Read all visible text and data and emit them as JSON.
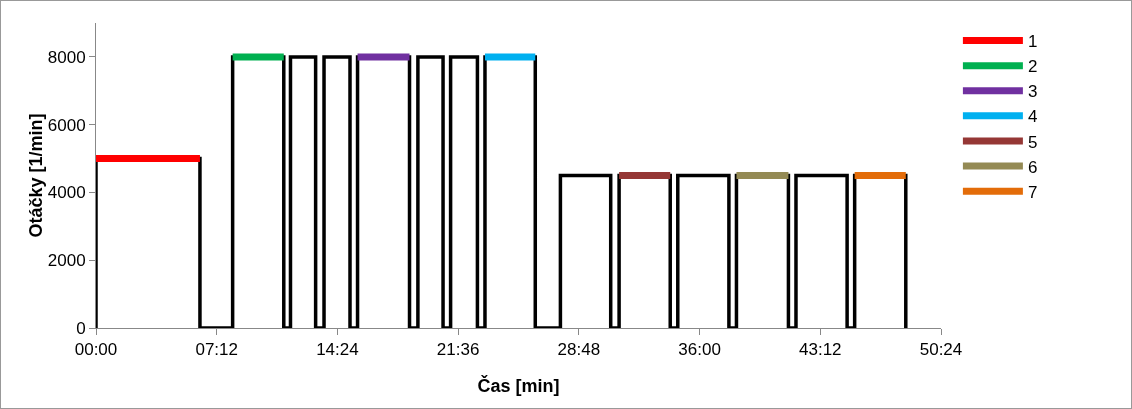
{
  "chart_data": {
    "type": "line",
    "xlabel": "Čas [min]",
    "ylabel": "Otáčky [1/min]",
    "xlim": [
      0,
      50.4
    ],
    "xticks": [
      {
        "value": 0,
        "label": "00:00"
      },
      {
        "value": 7.2,
        "label": "07:12"
      },
      {
        "value": 14.4,
        "label": "14:24"
      },
      {
        "value": 21.6,
        "label": "21:36"
      },
      {
        "value": 28.8,
        "label": "28:48"
      },
      {
        "value": 36,
        "label": "36:00"
      },
      {
        "value": 43.2,
        "label": "43:12"
      },
      {
        "value": 50.4,
        "label": "50:24"
      }
    ],
    "ylim": [
      0,
      9000
    ],
    "yticks": [
      0,
      2000,
      4000,
      6000,
      8000
    ],
    "grid": false,
    "legend": "right",
    "marker": "none",
    "series": [
      {
        "type": "step",
        "color": "#000000",
        "x": [
          0,
          0,
          6.2,
          8.15,
          11.2,
          11.6,
          13.1,
          13.6,
          15.15,
          15.6,
          18.7,
          19.2,
          20.7,
          21.15,
          22.75,
          23.2,
          26.2,
          27.7,
          30.7,
          31.2,
          34.25,
          34.7,
          37.75,
          38.2,
          41.3,
          41.75,
          44.8,
          45.25,
          48.3
        ],
        "values": [
          0,
          5000,
          0,
          8000,
          0,
          8000,
          0,
          8000,
          0,
          8000,
          0,
          8000,
          0,
          8000,
          0,
          8000,
          0,
          4500,
          0,
          4500,
          0,
          4500,
          0,
          4500,
          0,
          4500,
          0,
          4500,
          0
        ]
      },
      {
        "name": "1",
        "color": "#ff0000",
        "x": [
          0,
          6.2
        ],
        "values": [
          5000,
          5000
        ]
      },
      {
        "name": "2",
        "color": "#00b050",
        "x": [
          8.15,
          11.2
        ],
        "values": [
          8000,
          8000
        ]
      },
      {
        "name": "3",
        "color": "#7030a0",
        "x": [
          15.6,
          18.7
        ],
        "values": [
          8000,
          8000
        ]
      },
      {
        "name": "4",
        "color": "#00b0f0",
        "x": [
          23.2,
          26.2
        ],
        "values": [
          8000,
          8000
        ]
      },
      {
        "name": "5",
        "color": "#953735",
        "x": [
          31.2,
          34.25
        ],
        "values": [
          4500,
          4500
        ]
      },
      {
        "name": "6",
        "color": "#948a54",
        "x": [
          38.2,
          41.3
        ],
        "values": [
          4500,
          4500
        ]
      },
      {
        "name": "7",
        "color": "#e36c09",
        "x": [
          45.25,
          48.3
        ],
        "values": [
          4500,
          4500
        ]
      }
    ]
  }
}
